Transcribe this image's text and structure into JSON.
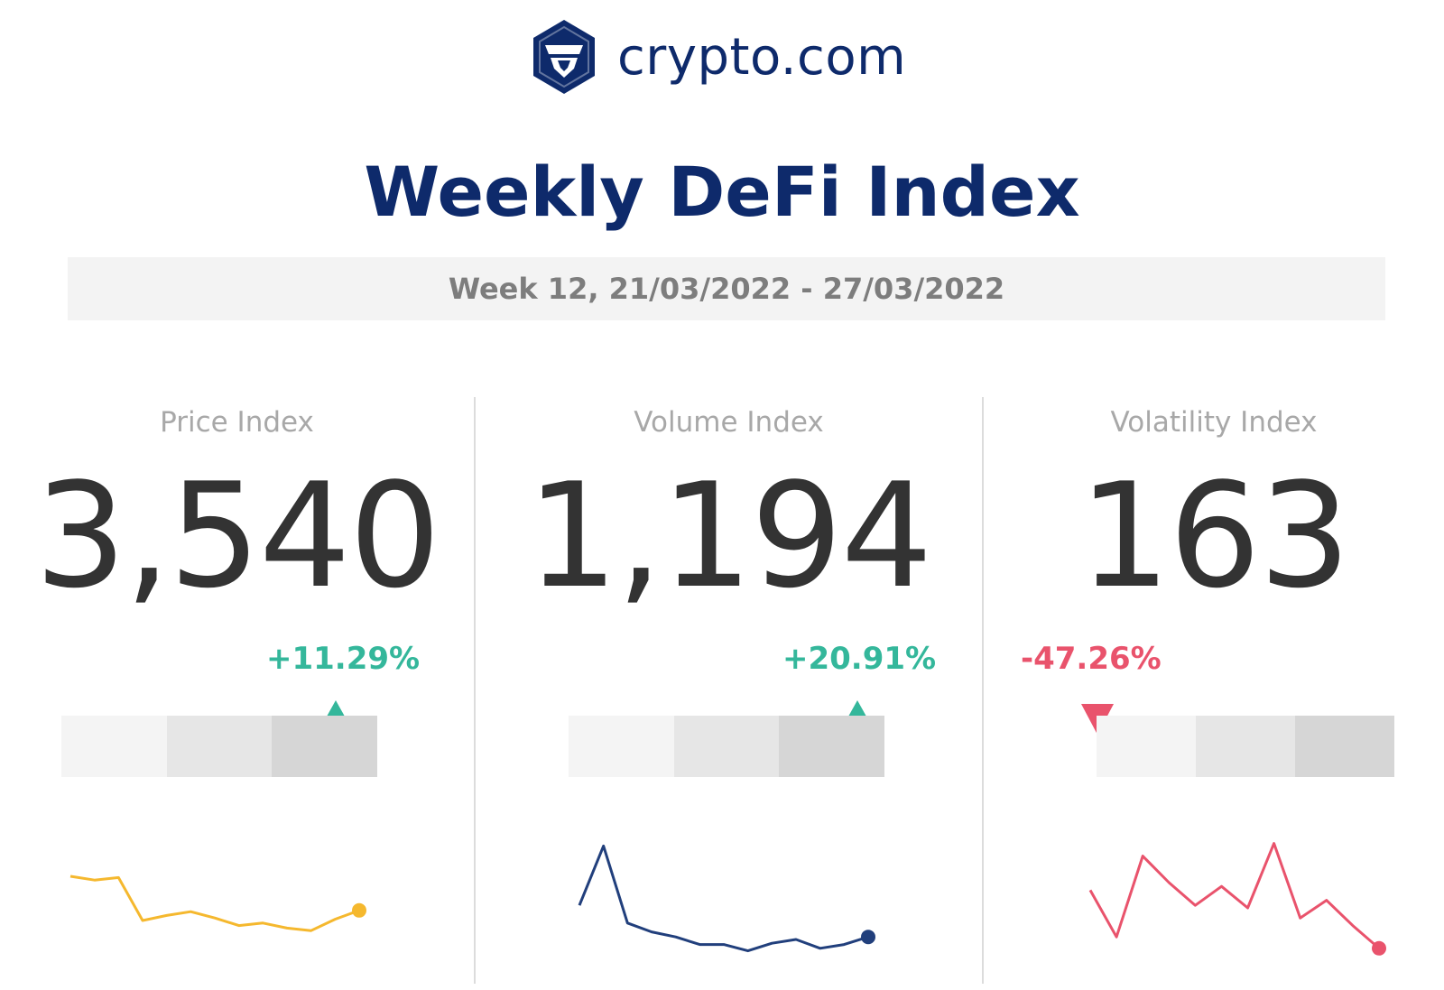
{
  "header": {
    "logo_text": "crypto.com",
    "title": "Weekly DeFi Index",
    "week": "Week 12, 21/03/2022 - 27/03/2022"
  },
  "colors": {
    "brand": "#0e2a6b",
    "up": "#34b79b",
    "down": "#e9536c",
    "price_line": "#f5b82e",
    "volume_line": "#213f7c",
    "volatility_line": "#e9536c"
  },
  "panels": [
    {
      "label": "Price Index",
      "value": "3,540",
      "change": "+11.29%",
      "direction": "up",
      "scale_level": 3
    },
    {
      "label": "Volume Index",
      "value": "1,194",
      "change": "+20.91%",
      "direction": "up",
      "scale_level": 3
    },
    {
      "label": "Volatility Index",
      "value": "163",
      "change": "-47.26%",
      "direction": "down",
      "scale_level": 1
    }
  ],
  "chart_data": [
    {
      "type": "line",
      "name": "Price Index",
      "values": [
        60,
        57,
        59,
        25,
        29,
        32,
        27,
        21,
        23,
        19,
        17,
        26,
        33
      ],
      "ylim": [
        0,
        100
      ]
    },
    {
      "type": "line",
      "name": "Volume Index",
      "values": [
        37,
        84,
        23,
        16,
        12,
        6,
        6,
        1,
        7,
        10,
        3,
        6,
        12
      ],
      "ylim": [
        0,
        100
      ]
    },
    {
      "type": "line",
      "name": "Volatility Index",
      "values": [
        49,
        12,
        76,
        55,
        37,
        52,
        35,
        86,
        27,
        41,
        21,
        3
      ],
      "ylim": [
        0,
        100
      ]
    }
  ]
}
